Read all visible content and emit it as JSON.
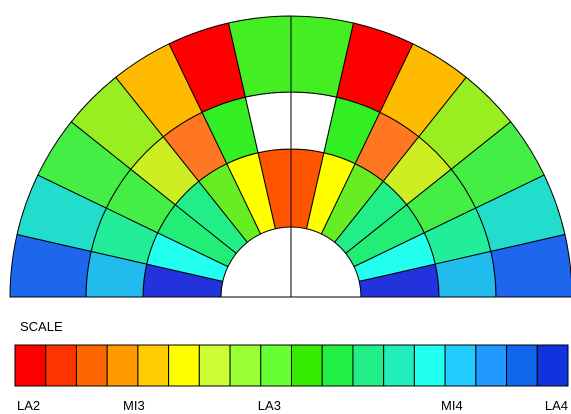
{
  "scale_title": "SCALE",
  "scale": {
    "colors": [
      "#ff0000",
      "#ff3300",
      "#ff6600",
      "#ff9900",
      "#ffcc00",
      "#ffff00",
      "#ccff33",
      "#99ff33",
      "#66ff33",
      "#33ee00",
      "#22ee44",
      "#22ee88",
      "#22eebb",
      "#22ffee",
      "#22ccff",
      "#2299ff",
      "#1166ee",
      "#1133dd"
    ],
    "labels": [
      {
        "text": "LA2",
        "at": 0
      },
      {
        "text": "MI3",
        "at": 0.215
      },
      {
        "text": "LA3",
        "at": 0.46
      },
      {
        "text": "MI4",
        "at": 0.79
      },
      {
        "text": "LA4",
        "at": 1
      }
    ]
  },
  "segments": {
    "ring1": [
      "#1f66ee",
      "#22ddcc",
      "#44ee44",
      "#99ee22",
      "#ffbb00",
      "#ff0000",
      "#44ee22",
      "#44ee22",
      "#ff0000",
      "#ffbb00",
      "#99ee22",
      "#44ee44",
      "#22ddcc",
      "#1f66ee"
    ],
    "ring2": [
      "#22bbee",
      "#22ee99",
      "#44ee44",
      "#ccee22",
      "#ff7722",
      "#33ee22",
      "#ffffff",
      "#ffffff",
      "#33ee22",
      "#ff7722",
      "#ccee22",
      "#44ee44",
      "#22ee99",
      "#22bbee"
    ],
    "ring3": [
      "#2233dd",
      "#22ffee",
      "#22ee77",
      "#22ee88",
      "#66ee22",
      "#ffff00",
      "#ff5500",
      "#ff5500",
      "#ffff00",
      "#66ee22",
      "#22ee88",
      "#22ee77",
      "#22ffee",
      "#2233dd"
    ]
  }
}
